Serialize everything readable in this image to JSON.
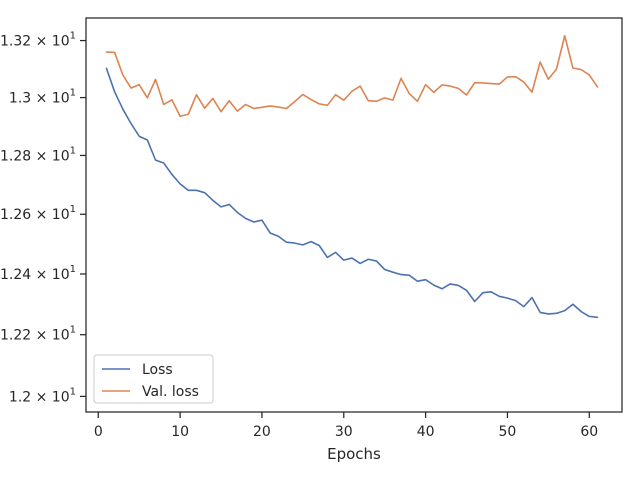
{
  "chart_data": {
    "type": "line",
    "title": "",
    "xlabel": "Epochs",
    "ylabel": "",
    "xlim": [
      -1.5,
      64
    ],
    "ylim": [
      11.95,
      13.28
    ],
    "y_scale": "log",
    "grid": false,
    "legend": {
      "placement": "lower-left"
    },
    "x_ticks": [
      0,
      10,
      20,
      30,
      40,
      50,
      60
    ],
    "x_tick_labels": [
      "0",
      "10",
      "20",
      "30",
      "40",
      "50",
      "60"
    ],
    "y_ticks": [
      12.0,
      12.2,
      12.4,
      12.6,
      12.8,
      13.0,
      13.2
    ],
    "y_tick_labels": [
      {
        "base": "1.2",
        "exp": "1"
      },
      {
        "base": "1.22",
        "exp": "1"
      },
      {
        "base": "1.24",
        "exp": "1"
      },
      {
        "base": "1.26",
        "exp": "1"
      },
      {
        "base": "1.28",
        "exp": "1"
      },
      {
        "base": "1.3",
        "exp": "1"
      },
      {
        "base": "1.32",
        "exp": "1"
      }
    ],
    "x": [
      1,
      2,
      3,
      4,
      5,
      6,
      7,
      8,
      9,
      10,
      11,
      12,
      13,
      14,
      15,
      16,
      17,
      18,
      19,
      20,
      21,
      22,
      23,
      24,
      25,
      26,
      27,
      28,
      29,
      30,
      31,
      32,
      33,
      34,
      35,
      36,
      37,
      38,
      39,
      40,
      41,
      42,
      43,
      44,
      45,
      46,
      47,
      48,
      49,
      50,
      51,
      52,
      53,
      54,
      55,
      56,
      57,
      58,
      59,
      60,
      61
    ],
    "series": [
      {
        "name": "Loss",
        "color": "#4c72b0",
        "values": [
          13.102,
          13.02,
          12.96,
          12.91,
          12.866,
          12.853,
          12.784,
          12.774,
          12.735,
          12.703,
          12.681,
          12.681,
          12.673,
          12.647,
          12.625,
          12.633,
          12.606,
          12.586,
          12.574,
          12.58,
          12.537,
          12.526,
          12.506,
          12.503,
          12.497,
          12.508,
          12.495,
          12.455,
          12.472,
          12.446,
          12.453,
          12.435,
          12.449,
          12.443,
          12.415,
          12.406,
          12.398,
          12.396,
          12.376,
          12.381,
          12.363,
          12.351,
          12.367,
          12.362,
          12.346,
          12.309,
          12.338,
          12.341,
          12.326,
          12.32,
          12.312,
          12.292,
          12.322,
          12.273,
          12.268,
          12.27,
          12.279,
          12.3,
          12.276,
          12.26,
          12.257
        ]
      },
      {
        "name": "Val. loss",
        "color": "#dd8452",
        "values": [
          13.16,
          13.158,
          13.079,
          13.033,
          13.045,
          12.999,
          13.063,
          12.976,
          12.992,
          12.935,
          12.942,
          13.01,
          12.963,
          12.997,
          12.951,
          12.989,
          12.953,
          12.976,
          12.962,
          12.966,
          12.971,
          12.967,
          12.962,
          12.986,
          13.011,
          12.993,
          12.978,
          12.973,
          13.01,
          12.991,
          13.022,
          13.04,
          12.989,
          12.987,
          12.999,
          12.991,
          13.067,
          13.014,
          12.987,
          13.045,
          13.018,
          13.044,
          13.04,
          13.032,
          13.009,
          13.052,
          13.051,
          13.049,
          13.047,
          13.072,
          13.073,
          13.054,
          13.019,
          13.124,
          13.064,
          13.1,
          13.217,
          13.103,
          13.098,
          13.079,
          13.037
        ]
      }
    ]
  }
}
